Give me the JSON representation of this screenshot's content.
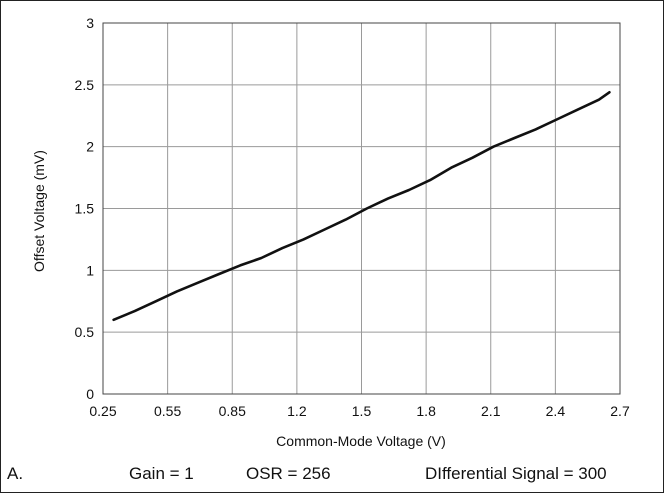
{
  "chart_data": {
    "type": "line",
    "xlabel": "Common-Mode Voltage (V)",
    "ylabel": "Offset Voltage (mV)",
    "xlim": [
      0.25,
      2.7
    ],
    "ylim": [
      0,
      3
    ],
    "x_ticks": [
      "0.25",
      "0.55",
      "0.85",
      "1.2",
      "1.5",
      "1.8",
      "2.1",
      "2.4",
      "2.7"
    ],
    "y_ticks": [
      "0",
      "0.5",
      "1",
      "1.5",
      "2",
      "2.5",
      "3"
    ],
    "grid": true,
    "series": [
      {
        "x": [
          0.3,
          0.4,
          0.5,
          0.6,
          0.7,
          0.8,
          0.9,
          1.0,
          1.1,
          1.2,
          1.3,
          1.4,
          1.5,
          1.6,
          1.7,
          1.8,
          1.9,
          2.0,
          2.1,
          2.2,
          2.3,
          2.4,
          2.5,
          2.6,
          2.65
        ],
        "y": [
          0.6,
          0.67,
          0.75,
          0.83,
          0.9,
          0.97,
          1.04,
          1.1,
          1.18,
          1.25,
          1.33,
          1.41,
          1.5,
          1.58,
          1.65,
          1.73,
          1.83,
          1.91,
          2.0,
          2.07,
          2.14,
          2.22,
          2.3,
          2.38,
          2.44
        ],
        "color": "#111111"
      }
    ]
  },
  "footer": {
    "label": "A.",
    "gain": "Gain = 1",
    "osr": "OSR = 256",
    "signal": "DIfferential Signal = 300"
  }
}
